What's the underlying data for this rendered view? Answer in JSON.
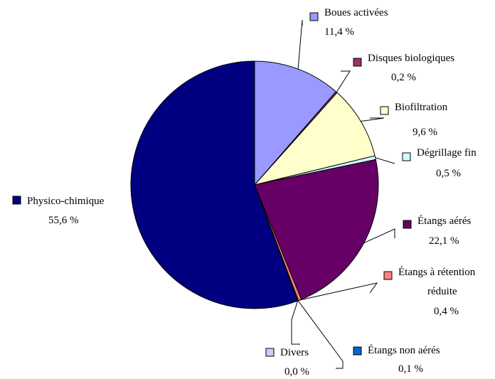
{
  "chart_data": {
    "type": "pie",
    "title": "",
    "slices": [
      {
        "name": "Boues activées",
        "value": 11.4,
        "value_label": "11,4 %",
        "color": "#9999ff"
      },
      {
        "name": "Disques biologiques",
        "value": 0.2,
        "value_label": "0,2 %",
        "color": "#993366"
      },
      {
        "name": "Biofiltration",
        "value": 9.6,
        "value_label": "9,6 %",
        "color": "#ffffcc"
      },
      {
        "name": "Dégrillage fin",
        "value": 0.5,
        "value_label": "0,5 %",
        "color": "#ccffff"
      },
      {
        "name": "Étangs aérés",
        "value": 22.1,
        "value_label": "22,1 %",
        "color": "#660066"
      },
      {
        "name": "Étangs à rétention réduite",
        "value": 0.4,
        "value_label": "0,4 %",
        "color": "#ff8080"
      },
      {
        "name": "Étangs non aérés",
        "value": 0.1,
        "value_label": "0,1 %",
        "color": "#0066cc"
      },
      {
        "name": "Divers",
        "value": 0.0,
        "value_label": "0,0 %",
        "color": "#ccccff"
      },
      {
        "name": "Physico-chimique",
        "value": 55.6,
        "value_label": "55,6 %",
        "color": "#000080"
      }
    ],
    "start_angle": "12 o'clock",
    "direction": "clockwise",
    "labels": "outside with leader lines"
  }
}
